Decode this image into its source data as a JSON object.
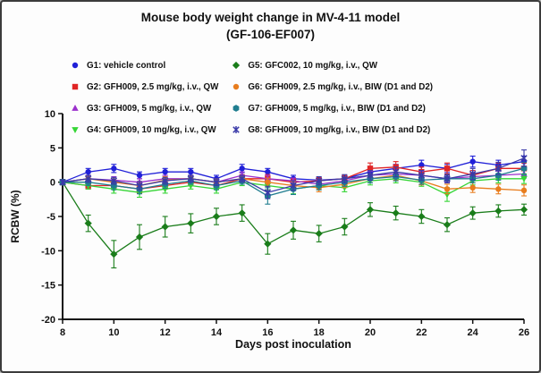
{
  "chart_data": {
    "type": "line",
    "title": "Mouse body weight change in MV-4-11 model",
    "subtitle": "(GF-106-EF007)",
    "xlabel": "Days post inoculation",
    "ylabel": "RCBW (%)",
    "xlim": [
      8,
      26
    ],
    "ylim": [
      -20,
      10
    ],
    "x_ticks": [
      8,
      10,
      12,
      14,
      16,
      18,
      20,
      22,
      24,
      26
    ],
    "y_ticks": [
      10,
      5,
      0,
      -5,
      -10,
      -15,
      -20
    ],
    "grid": false,
    "legend_position": "top",
    "x": [
      8,
      9,
      10,
      11,
      12,
      13,
      14,
      15,
      16,
      17,
      18,
      19,
      20,
      21,
      22,
      23,
      24,
      25,
      26
    ],
    "series": [
      {
        "name": "G1: vehicle control",
        "color": "#2020d8",
        "marker": "circle",
        "values": [
          0,
          1.5,
          2.0,
          1.0,
          1.5,
          1.5,
          0.5,
          2.0,
          1.5,
          0.5,
          0.3,
          0.5,
          1.5,
          2.0,
          2.5,
          2.0,
          3.0,
          2.5,
          3.0
        ],
        "err": [
          0.3,
          0.5,
          0.6,
          0.5,
          0.5,
          0.5,
          0.5,
          0.6,
          0.5,
          0.5,
          0.4,
          0.5,
          0.6,
          0.6,
          0.7,
          0.6,
          0.8,
          0.7,
          0.8
        ]
      },
      {
        "name": "G2: GFH009, 2.5 mg/kg, i.v., QW",
        "color": "#e02525",
        "marker": "square",
        "values": [
          0,
          -0.5,
          -0.5,
          -1.0,
          -0.5,
          0.0,
          -0.5,
          0.5,
          0.5,
          0.0,
          0.2,
          0.5,
          2.0,
          2.2,
          1.5,
          2.0,
          1.0,
          2.0,
          2.0
        ],
        "err": [
          0.3,
          0.5,
          0.5,
          0.6,
          0.5,
          0.5,
          0.5,
          0.6,
          0.6,
          0.5,
          0.5,
          0.5,
          0.8,
          0.8,
          0.7,
          0.8,
          0.7,
          0.8,
          0.8
        ]
      },
      {
        "name": "G3: GFH009, 5 mg/kg, i.v., QW",
        "color": "#9b30cc",
        "marker": "triangle-up",
        "values": [
          0,
          0.5,
          0.3,
          0.0,
          0.5,
          0.5,
          0.0,
          1.0,
          0.5,
          0.2,
          -0.3,
          0.2,
          1.0,
          1.2,
          1.0,
          0.5,
          0.8,
          1.0,
          1.2
        ],
        "err": [
          0.3,
          0.4,
          0.5,
          0.5,
          0.5,
          0.4,
          0.5,
          0.5,
          0.5,
          0.4,
          0.5,
          0.5,
          0.6,
          0.6,
          0.6,
          0.5,
          0.6,
          0.6,
          0.6
        ]
      },
      {
        "name": "G4: GFH009, 10 mg/kg, i.v., QW",
        "color": "#35d535",
        "marker": "triangle-down",
        "values": [
          0,
          -0.5,
          -1.0,
          -1.5,
          -1.0,
          -0.5,
          -1.0,
          0.0,
          -0.5,
          -1.0,
          -0.5,
          -0.8,
          0.2,
          0.5,
          0.0,
          -1.8,
          0.2,
          0.5,
          0.5
        ],
        "err": [
          0.3,
          0.5,
          0.6,
          0.7,
          0.6,
          0.5,
          0.6,
          0.5,
          0.6,
          0.7,
          0.6,
          0.6,
          0.6,
          0.6,
          0.6,
          1.0,
          0.6,
          0.6,
          0.7
        ]
      },
      {
        "name": "G5: GFC002, 10 mg/kg, i.v., QW",
        "color": "#1a7d1a",
        "marker": "diamond",
        "values": [
          0,
          -6.0,
          -10.5,
          -8.0,
          -6.5,
          -6.0,
          -5.0,
          -4.5,
          -9.0,
          -7.0,
          -7.5,
          -6.5,
          -4.0,
          -4.5,
          -5.0,
          -6.2,
          -4.5,
          -4.2,
          -4.0
        ],
        "err": [
          0.4,
          1.2,
          2.0,
          1.8,
          1.5,
          1.4,
          1.2,
          1.2,
          1.5,
          1.3,
          1.2,
          1.2,
          1.0,
          1.0,
          1.0,
          1.0,
          0.9,
          0.9,
          0.8
        ]
      },
      {
        "name": "G6: GFH009, 2.5 mg/kg, i.v., BIW (D1 and D2)",
        "color": "#e87d1e",
        "marker": "circle",
        "values": [
          0,
          0.5,
          0.0,
          -0.5,
          0.3,
          0.5,
          0.0,
          0.5,
          0.0,
          -0.5,
          -0.8,
          -0.3,
          0.5,
          1.0,
          0.2,
          -1.0,
          -0.8,
          -1.0,
          -1.2
        ],
        "err": [
          0.3,
          0.5,
          0.5,
          0.6,
          0.5,
          0.5,
          0.5,
          0.5,
          0.6,
          0.6,
          0.6,
          0.5,
          0.6,
          0.7,
          0.6,
          0.7,
          0.7,
          0.7,
          0.8
        ]
      },
      {
        "name": "G7: GFH009, 5 mg/kg, i.v., BIW (D1 and D2)",
        "color": "#1f7d8f",
        "marker": "hexagon",
        "values": [
          0,
          0.0,
          -0.5,
          -1.0,
          -0.3,
          0.2,
          -0.5,
          0.2,
          -2.0,
          -1.0,
          -0.5,
          0.0,
          0.5,
          0.8,
          0.3,
          0.5,
          0.5,
          1.0,
          2.0
        ],
        "err": [
          0.3,
          0.5,
          0.6,
          0.7,
          0.6,
          0.5,
          0.6,
          0.5,
          1.2,
          0.8,
          0.6,
          0.6,
          0.6,
          0.6,
          0.6,
          0.6,
          0.6,
          0.7,
          0.9
        ]
      },
      {
        "name": "G8: GFH009, 10 mg/kg, i.v., BIW (D1 and D2)",
        "color": "#3a3aa8",
        "marker": "x",
        "values": [
          0,
          0.5,
          0.2,
          -0.5,
          0.2,
          0.5,
          0.0,
          0.5,
          -1.5,
          -0.5,
          0.2,
          0.5,
          1.0,
          1.5,
          1.0,
          0.5,
          1.2,
          2.0,
          3.5
        ],
        "err": [
          0.3,
          0.5,
          0.5,
          0.6,
          0.5,
          0.5,
          0.5,
          0.5,
          0.9,
          0.7,
          0.6,
          0.6,
          0.7,
          0.7,
          0.7,
          0.6,
          0.8,
          0.9,
          1.2
        ]
      }
    ]
  }
}
